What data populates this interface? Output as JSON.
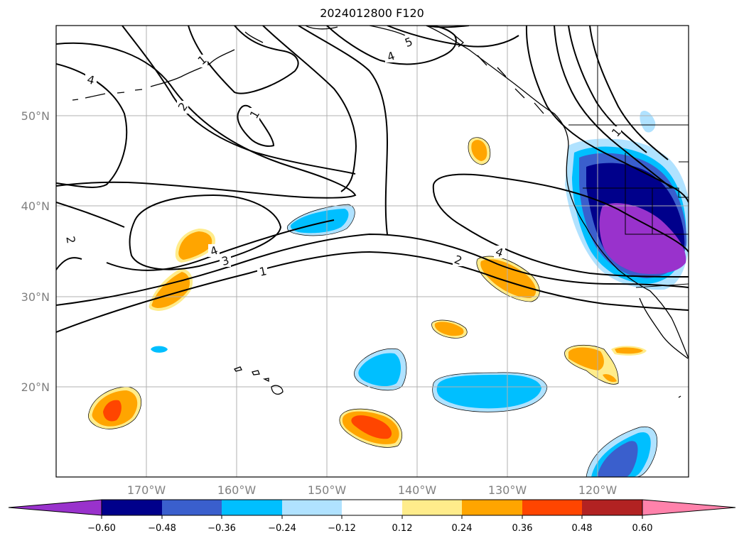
{
  "title": "2024012800 F120",
  "map": {
    "projection": "PlateCarree",
    "lon_range": [
      -180,
      -110
    ],
    "lat_range": [
      10,
      60
    ],
    "lat_ticks": [
      "50°N",
      "40°N",
      "30°N",
      "20°N"
    ],
    "lon_ticks": [
      "170°W",
      "160°W",
      "150°W",
      "140°W",
      "130°W",
      "120°W"
    ],
    "gridlines": true,
    "contour_labels": [
      "4",
      "1",
      "2",
      "1",
      "5",
      "4",
      "1",
      "1",
      "4",
      "3",
      "1",
      "2",
      "4",
      "2"
    ]
  },
  "colorbar": {
    "extend": "both",
    "tick_labels": [
      "−0.60",
      "−0.48",
      "−0.36",
      "−0.24",
      "−0.12",
      "0.12",
      "0.24",
      "0.36",
      "0.48",
      "0.60"
    ],
    "colors": [
      "#9932cc",
      "#00008b",
      "#3a5fcd",
      "#00bfff",
      "#b0e2ff",
      "#ffffff",
      "#ffec8b",
      "#ffa500",
      "#ff4500",
      "#b22222",
      "#ff82ab"
    ]
  }
}
